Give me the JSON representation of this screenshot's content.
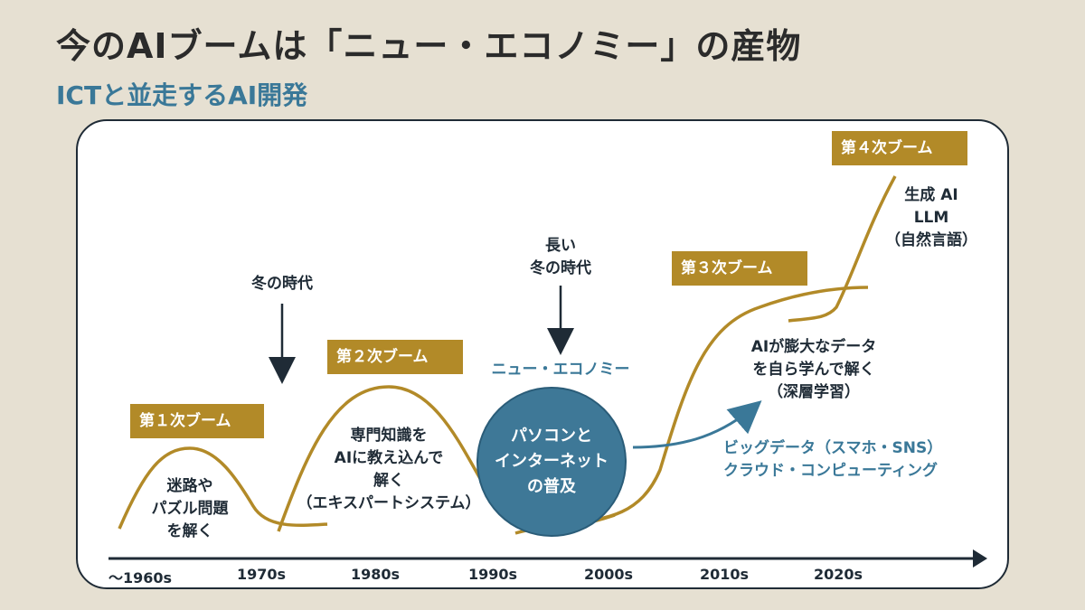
{
  "header": {
    "title": "今のAIブームは「ニュー・エコノミー」の産物",
    "subtitle": "ICTと並走するAI開発"
  },
  "booms": {
    "first": "第１次ブーム",
    "second": "第２次ブーム",
    "third": "第３次ブーム",
    "fourth": "第４次ブーム"
  },
  "labels": {
    "first_boom_content": [
      "迷路や",
      "パズル問題",
      "を解く"
    ],
    "winter1": "冬の時代",
    "second_boom_content": [
      "専門知識を",
      "AIに教え込んで",
      "解く",
      "（エキスパートシステム）"
    ],
    "winter2": [
      "長い",
      "冬の時代"
    ],
    "new_economy": "ニュー・エコノミー",
    "pc_internet": [
      "パソコンと",
      "インターネット",
      "の普及"
    ],
    "third_boom_content": [
      "AIが膨大なデータ",
      "を自ら学んで解く",
      "（深層学習）"
    ],
    "ict": [
      "ビッグデータ（スマホ・SNS）",
      "クラウド・コンピューティング"
    ],
    "fourth_boom_content": [
      "生成 AI",
      "LLM",
      "（自然言語）"
    ]
  },
  "axis": {
    "ticks": [
      "〜1960s",
      "1970s",
      "1980s",
      "1990s",
      "2000s",
      "2010s",
      "2020s"
    ]
  },
  "colors": {
    "background": "#e6e0d2",
    "boom_gold": "#b28a28",
    "ict_blue": "#3a7898",
    "dark": "#1f2b36"
  }
}
